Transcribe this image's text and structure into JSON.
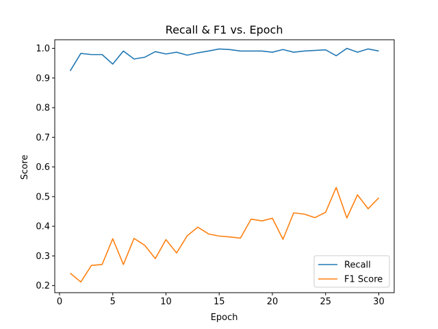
{
  "chart_data": {
    "type": "line",
    "title": "Recall & F1 vs. Epoch",
    "xlabel": "Epoch",
    "ylabel": "Score",
    "xlim": [
      -0.45,
      31.45
    ],
    "ylim": [
      0.176,
      1.029
    ],
    "xticks": [
      0,
      5,
      10,
      15,
      20,
      25,
      30
    ],
    "yticks": [
      0.2,
      0.3,
      0.4,
      0.5,
      0.6,
      0.7,
      0.8,
      0.9,
      1.0
    ],
    "ytick_labels": [
      "0.2",
      "0.3",
      "0.4",
      "0.5",
      "0.6",
      "0.7",
      "0.8",
      "0.9",
      "1.0"
    ],
    "grid": false,
    "legend_position": "lower-right",
    "x": [
      1,
      2,
      3,
      4,
      5,
      6,
      7,
      8,
      9,
      10,
      11,
      12,
      13,
      14,
      15,
      16,
      17,
      18,
      19,
      20,
      21,
      22,
      23,
      24,
      25,
      26,
      27,
      28,
      29,
      30
    ],
    "series": [
      {
        "name": "Recall",
        "color": "#1f77b4",
        "values": [
          0.924,
          0.983,
          0.979,
          0.979,
          0.947,
          0.991,
          0.964,
          0.97,
          0.989,
          0.981,
          0.987,
          0.977,
          0.985,
          0.991,
          0.998,
          0.996,
          0.991,
          0.991,
          0.991,
          0.987,
          0.996,
          0.987,
          0.991,
          0.993,
          0.995,
          0.975,
          1.0,
          0.987,
          0.998,
          0.991
        ]
      },
      {
        "name": "F1 Score",
        "color": "#ff7f0e",
        "values": [
          0.242,
          0.212,
          0.268,
          0.271,
          0.358,
          0.271,
          0.359,
          0.336,
          0.291,
          0.355,
          0.31,
          0.368,
          0.397,
          0.374,
          0.367,
          0.364,
          0.36,
          0.424,
          0.418,
          0.427,
          0.356,
          0.445,
          0.441,
          0.429,
          0.447,
          0.531,
          0.428,
          0.506,
          0.459,
          0.496
        ]
      }
    ]
  }
}
